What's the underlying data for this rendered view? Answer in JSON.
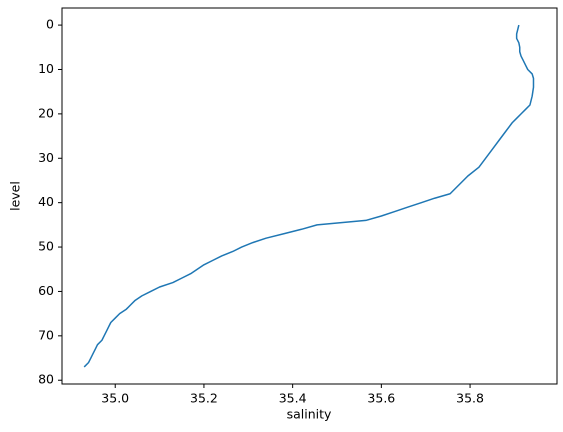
{
  "chart_data": {
    "type": "line",
    "xlabel": "salinity",
    "ylabel": "level",
    "color": "#1f77b4",
    "grid": false,
    "x": [
      35.91,
      35.905,
      35.905,
      35.91,
      35.912,
      35.912,
      35.915,
      35.92,
      35.925,
      35.93,
      35.94,
      35.943,
      35.943,
      35.94,
      35.935,
      35.925,
      35.915,
      35.905,
      35.895,
      35.88,
      35.865,
      35.85,
      35.835,
      35.82,
      35.795,
      35.775,
      35.755,
      35.72,
      35.69,
      35.66,
      35.63,
      35.6,
      35.565,
      35.455,
      35.42,
      35.38,
      35.34,
      35.31,
      35.285,
      35.265,
      35.24,
      35.22,
      35.2,
      35.185,
      35.17,
      35.15,
      35.13,
      35.1,
      35.08,
      35.06,
      35.045,
      35.035,
      35.025,
      35.01,
      35.0,
      34.99,
      34.985,
      34.98,
      34.975,
      34.97,
      34.96,
      34.955,
      34.95,
      34.945,
      34.94,
      34.93
    ],
    "y": [
      0,
      2,
      3,
      4,
      5,
      6,
      7,
      8,
      9,
      10,
      11,
      12,
      14,
      16,
      18,
      19,
      20,
      21,
      22,
      24,
      26,
      28,
      30,
      32,
      34,
      36,
      38,
      39,
      40,
      41,
      42,
      43,
      44,
      45,
      46,
      47,
      48,
      49,
      50,
      51,
      52,
      53,
      54,
      55,
      56,
      57,
      58,
      59,
      60,
      61,
      62,
      63,
      64,
      65,
      66,
      67,
      68,
      69,
      70,
      71,
      72,
      73,
      74,
      75,
      76,
      77
    ],
    "xlim": [
      34.88,
      35.996
    ],
    "ylim": [
      80.85,
      -3.85
    ],
    "xticks": [
      {
        "value": 35,
        "label": "35.0"
      },
      35.2,
      35.4,
      35.6,
      35.8
    ],
    "yticks": [
      0,
      10,
      20,
      30,
      40,
      50,
      60,
      70,
      80
    ]
  }
}
